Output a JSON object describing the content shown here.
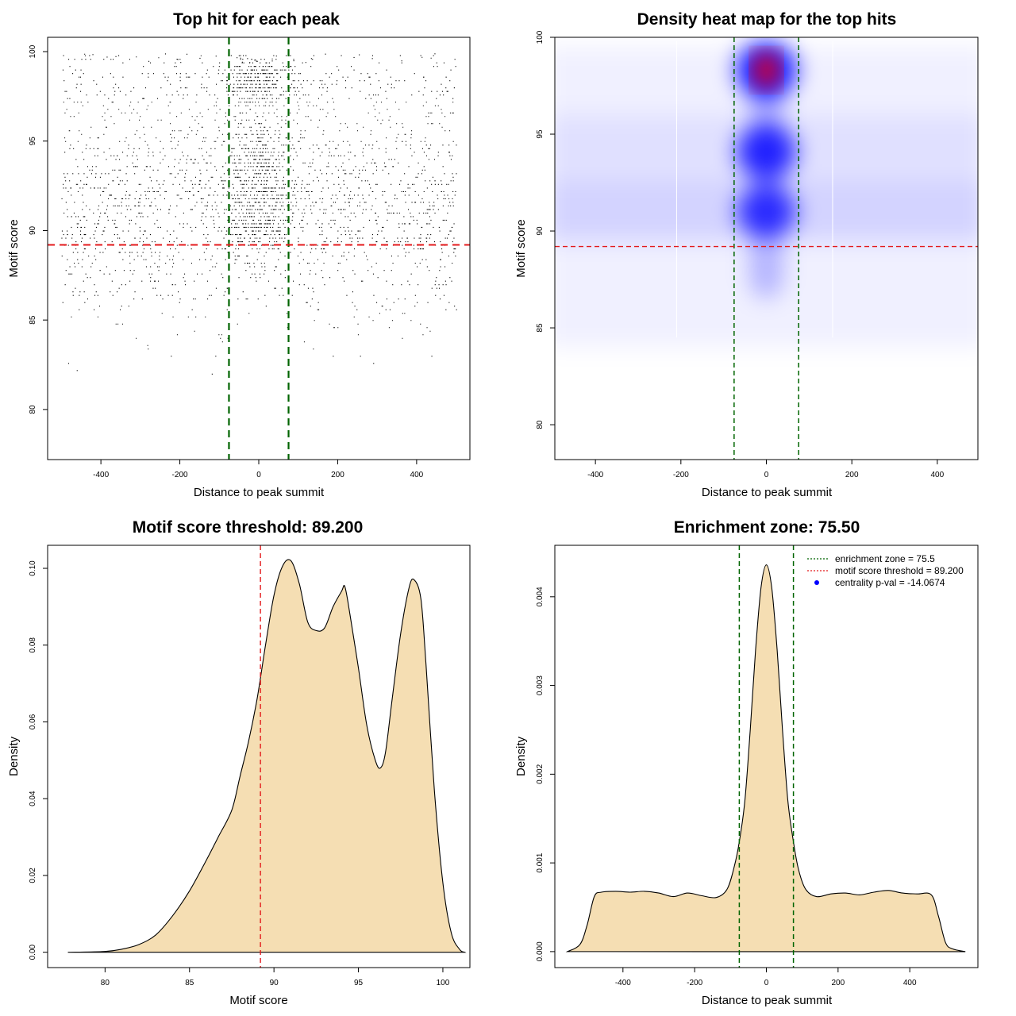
{
  "chart_data": [
    {
      "type": "scatter",
      "title": "Top hit for each peak",
      "xlabel": "Distance to peak summit",
      "ylabel": "Motif score",
      "xlim": [
        -535,
        535
      ],
      "ylim": [
        77.2,
        100.8
      ],
      "xticks": [
        -400,
        -200,
        0,
        200,
        400
      ],
      "yticks": [
        80,
        85,
        90,
        95,
        100
      ],
      "xtick_labels": [
        "-400",
        "-200",
        "0",
        "200",
        "400"
      ],
      "ytick_labels": [
        "80",
        "85",
        "90",
        "95",
        "100"
      ],
      "vlines": [
        -75.5,
        75.5
      ],
      "hline": 89.2,
      "vline_color": "#006400",
      "hline_color": "#e31a1c",
      "point_color": "#000000",
      "x_range": [
        -500,
        500
      ],
      "score_peaks": [
        91,
        94.2,
        98.3
      ],
      "n_points": 22000
    },
    {
      "type": "heatmap",
      "title": "Density heat map for the top hits",
      "xlabel": "Distance to peak summit",
      "ylabel": "Motif score",
      "xlim": [
        -495,
        495
      ],
      "ylim": [
        78.2,
        100
      ],
      "xticks": [
        -400,
        -200,
        0,
        200,
        400
      ],
      "yticks": [
        80,
        85,
        90,
        95,
        100
      ],
      "xtick_labels": [
        "-400",
        "-200",
        "0",
        "200",
        "400"
      ],
      "ytick_labels": [
        "80",
        "85",
        "90",
        "95",
        "100"
      ],
      "vlines": [
        -75.5,
        75.5
      ],
      "hline": 89.2,
      "hotspots": [
        {
          "x": 0,
          "y": 98.3,
          "strength": 1.0
        },
        {
          "x": 0,
          "y": 94.1,
          "strength": 0.75
        },
        {
          "x": 0,
          "y": 91.0,
          "strength": 0.55
        }
      ],
      "colors": [
        "#ffffff",
        "#0000ff",
        "#ff0000"
      ]
    },
    {
      "type": "area",
      "title": "Motif score threshold: 89.200",
      "xlabel": "Motif score",
      "ylabel": "Density",
      "xlim": [
        76.6,
        101.6
      ],
      "ylim": [
        -0.004,
        0.106
      ],
      "xticks": [
        80,
        85,
        90,
        95,
        100
      ],
      "yticks": [
        0,
        0.02,
        0.04,
        0.06,
        0.08,
        0.1
      ],
      "xtick_labels": [
        "80",
        "85",
        "90",
        "95",
        "100"
      ],
      "ytick_labels": [
        "0.00",
        "0.02",
        "0.04",
        "0.06",
        "0.08",
        "0.10"
      ],
      "vline": 89.2,
      "fill": "#f5deb3",
      "x": [
        77.8,
        80,
        81,
        82,
        83,
        84,
        85,
        86,
        86.7,
        87.5,
        88,
        88.5,
        89,
        89.5,
        90,
        90.5,
        91,
        91.5,
        92,
        92.5,
        93,
        93.5,
        94,
        94.2,
        94.5,
        95,
        95.5,
        96,
        96.3,
        96.6,
        97,
        97.5,
        98,
        98.3,
        98.7,
        99,
        99.5,
        100,
        100.5,
        101,
        101.3
      ],
      "y": [
        0,
        0.0002,
        0.0008,
        0.002,
        0.0045,
        0.0095,
        0.016,
        0.024,
        0.03,
        0.037,
        0.046,
        0.055,
        0.066,
        0.08,
        0.093,
        0.1005,
        0.102,
        0.096,
        0.086,
        0.0838,
        0.0845,
        0.09,
        0.094,
        0.0952,
        0.088,
        0.074,
        0.059,
        0.05,
        0.048,
        0.052,
        0.066,
        0.083,
        0.095,
        0.097,
        0.092,
        0.075,
        0.042,
        0.018,
        0.005,
        0.0007,
        0
      ]
    },
    {
      "type": "area",
      "title": "Enrichment zone: 75.50",
      "xlabel": "Distance to peak summit",
      "ylabel": "Density",
      "xlim": [
        -590,
        590
      ],
      "ylim": [
        -0.00018,
        0.00458
      ],
      "xticks": [
        -400,
        -200,
        0,
        200,
        400
      ],
      "yticks": [
        0,
        0.001,
        0.002,
        0.003,
        0.004
      ],
      "xtick_labels": [
        "-400",
        "-200",
        "0",
        "200",
        "400"
      ],
      "ytick_labels": [
        "0.000",
        "0.001",
        "0.002",
        "0.003",
        "0.004"
      ],
      "vlines": [
        -75.5,
        75.5
      ],
      "fill": "#f5deb3",
      "x": [
        -555,
        -520,
        -500,
        -480,
        -460,
        -420,
        -380,
        -340,
        -300,
        -260,
        -220,
        -180,
        -140,
        -110,
        -90,
        -75,
        -60,
        -45,
        -30,
        -15,
        0,
        15,
        30,
        45,
        60,
        75,
        90,
        110,
        140,
        180,
        220,
        260,
        300,
        340,
        380,
        420,
        460,
        480,
        500,
        520,
        555
      ],
      "y": [
        0,
        8e-05,
        0.0003,
        0.00062,
        0.00067,
        0.00068,
        0.00067,
        0.00068,
        0.00066,
        0.00062,
        0.00066,
        0.00063,
        0.00061,
        0.0007,
        0.00095,
        0.00125,
        0.0017,
        0.0025,
        0.0034,
        0.0041,
        0.00436,
        0.0041,
        0.0034,
        0.0025,
        0.0017,
        0.00125,
        0.00092,
        0.0007,
        0.00062,
        0.00065,
        0.00066,
        0.00064,
        0.00067,
        0.00069,
        0.00066,
        0.00065,
        0.00064,
        0.0004,
        0.0001,
        3e-05,
        0
      ],
      "legend": [
        {
          "label": "enrichment zone = 75.5",
          "color": "#006400",
          "kind": "line"
        },
        {
          "label": "motif score threshold = 89.200",
          "color": "#e31a1c",
          "kind": "line"
        },
        {
          "label": "centrality p-val = -14.0674",
          "color": "#0000ff",
          "kind": "point"
        }
      ],
      "legend_position": "top-right"
    }
  ]
}
